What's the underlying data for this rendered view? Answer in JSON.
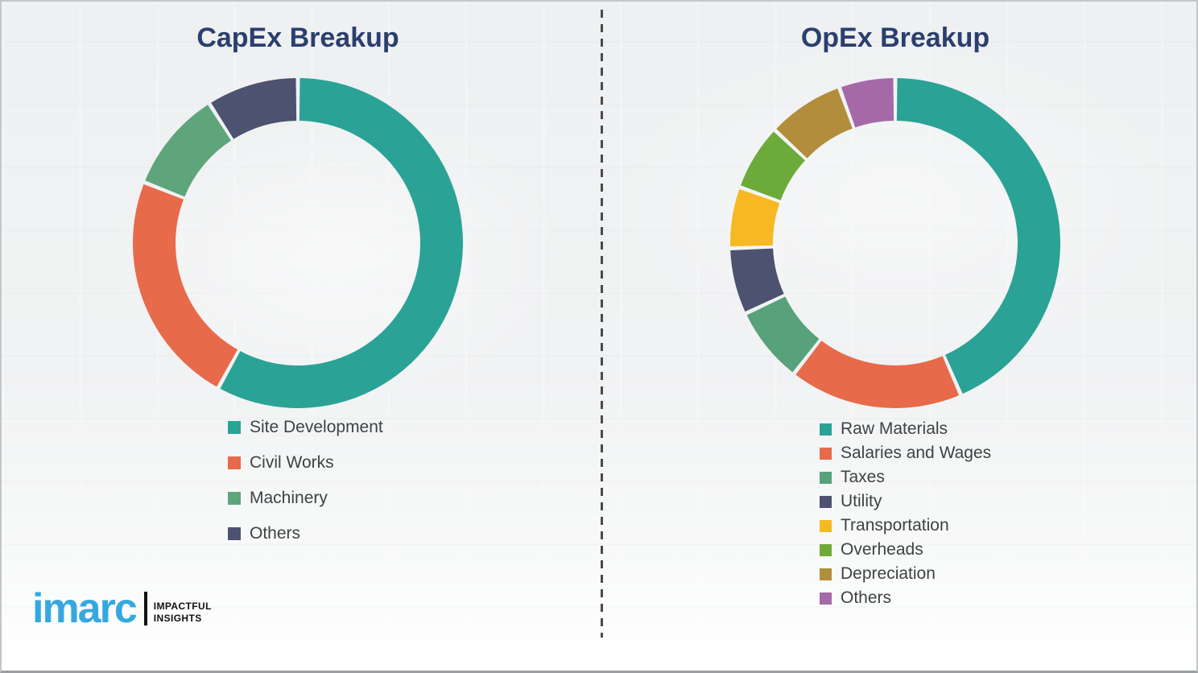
{
  "canvas": {
    "background_color": "#f0f1f2",
    "divider_color": "#4a4a4a",
    "title_color": "#2a3f6f",
    "legend_text_color": "#3f4244"
  },
  "chart_data": [
    {
      "type": "pie",
      "subtype": "donut",
      "title": "CapEx Breakup",
      "labels": [
        "Site Development",
        "Civil Works",
        "Machinery",
        "Others"
      ],
      "values": [
        58,
        23,
        10,
        9
      ],
      "colors": [
        "#2aa396",
        "#e76a4a",
        "#5ea57b",
        "#4c526f"
      ],
      "start_angle_deg": 0,
      "direction": "clockwise",
      "data_labels_shown": false,
      "legend_position": "below"
    },
    {
      "type": "pie",
      "subtype": "donut",
      "title": "OpEx Breakup",
      "labels": [
        "Raw Materials",
        "Salaries and Wages",
        "Taxes",
        "Utility",
        "Transportation",
        "Overheads",
        "Depreciation",
        "Others"
      ],
      "values": [
        43.5,
        17,
        7.5,
        6.5,
        6,
        6.5,
        7.5,
        5.5
      ],
      "colors": [
        "#2aa396",
        "#e76a4a",
        "#57a27a",
        "#4c526f",
        "#f6b923",
        "#6cab39",
        "#b28d3c",
        "#a569a8"
      ],
      "start_angle_deg": 0,
      "direction": "clockwise",
      "data_labels_shown": false,
      "legend_position": "below"
    }
  ],
  "logo": {
    "brand": "imarc",
    "brand_color": "#35a8e0",
    "tagline_line1": "IMPACTFUL",
    "tagline_line2": "INSIGHTS"
  }
}
